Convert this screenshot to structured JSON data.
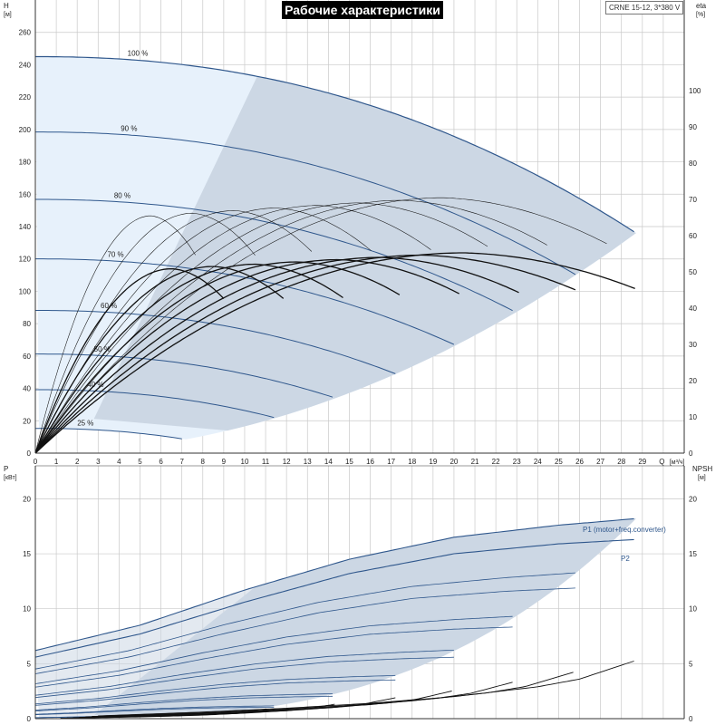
{
  "chart_data": [
    {
      "type": "line",
      "title": "Рабочие характеристики",
      "model": "CRNE 15-12, 3*380 V",
      "y_left": {
        "label": "H",
        "unit": "[м]",
        "range": [
          0,
          280
        ],
        "ticks": [
          0,
          20,
          40,
          60,
          80,
          100,
          120,
          140,
          160,
          180,
          200,
          220,
          240,
          260
        ]
      },
      "y_right": {
        "label": "eta",
        "unit": "[%]",
        "range": [
          0,
          100
        ],
        "ticks": [
          0,
          10,
          20,
          30,
          40,
          50,
          60,
          70,
          80,
          90,
          100
        ]
      },
      "x": {
        "label": "Q",
        "unit": "[м³/ч]",
        "range": [
          0,
          31
        ],
        "ticks": [
          0,
          1,
          2,
          3,
          4,
          5,
          6,
          7,
          8,
          9,
          10,
          11,
          12,
          13,
          14,
          15,
          16,
          17,
          18,
          19,
          20,
          21,
          22,
          23,
          24,
          25,
          26,
          27,
          28,
          29
        ]
      },
      "grid": true,
      "qh_curves": [
        {
          "label": "100 %",
          "speed": 1.0
        },
        {
          "label": "90 %",
          "speed": 0.9
        },
        {
          "label": "80 %",
          "speed": 0.8
        },
        {
          "label": "70 %",
          "speed": 0.7
        },
        {
          "label": "60 %",
          "speed": 0.6
        },
        {
          "label": "50 %",
          "speed": 0.5
        },
        {
          "label": "40 %",
          "speed": 0.4
        },
        {
          "label": "25 %",
          "speed": 0.25
        }
      ],
      "qh_base": {
        "shutoff_head": 245,
        "max_flow": 28.7,
        "head_at_max_flow": 136
      },
      "eta_base": {
        "peak_percent": 73,
        "flow_at_peak": 20.5
      },
      "eta_curve_count": 16,
      "colors": {
        "operating_region": "#ccd7e4",
        "low_speed_region": "#e7f1fb",
        "qh_line": "#2f578c",
        "eta_line": "#111111",
        "grid": "#c9c9c9"
      }
    },
    {
      "type": "line",
      "y_left": {
        "label": "P",
        "unit": "[кВт]",
        "range": [
          0,
          23
        ],
        "ticks": [
          0,
          5,
          10,
          15,
          20
        ]
      },
      "y_right": {
        "label": "NPSH",
        "unit": "[м]",
        "range": [
          0,
          23
        ],
        "ticks": [
          0,
          5,
          10,
          15,
          20
        ]
      },
      "x": {
        "range": [
          0,
          31
        ]
      },
      "grid": true,
      "power_series": [
        {
          "name": "P1 (motor+freq.converter)",
          "q": [
            0,
            5,
            10,
            15,
            20,
            25,
            28.7
          ],
          "values": [
            6.2,
            8.5,
            11.7,
            14.5,
            16.5,
            17.6,
            18.2
          ]
        },
        {
          "name": "P2",
          "q": [
            0,
            5,
            10,
            15,
            20,
            25,
            28.7
          ],
          "values": [
            5.6,
            7.7,
            10.6,
            13.2,
            15.0,
            15.9,
            16.3
          ]
        }
      ],
      "npsh_curve": {
        "q": [
          3,
          8,
          12,
          16,
          20,
          24,
          26,
          28.7
        ],
        "values": [
          0.25,
          0.6,
          0.95,
          1.4,
          2.0,
          2.9,
          3.6,
          5.3
        ]
      },
      "colors": {
        "operating_region": "#ccd7e4",
        "power_line": "#2f578c",
        "npsh_line": "#111111"
      }
    }
  ]
}
